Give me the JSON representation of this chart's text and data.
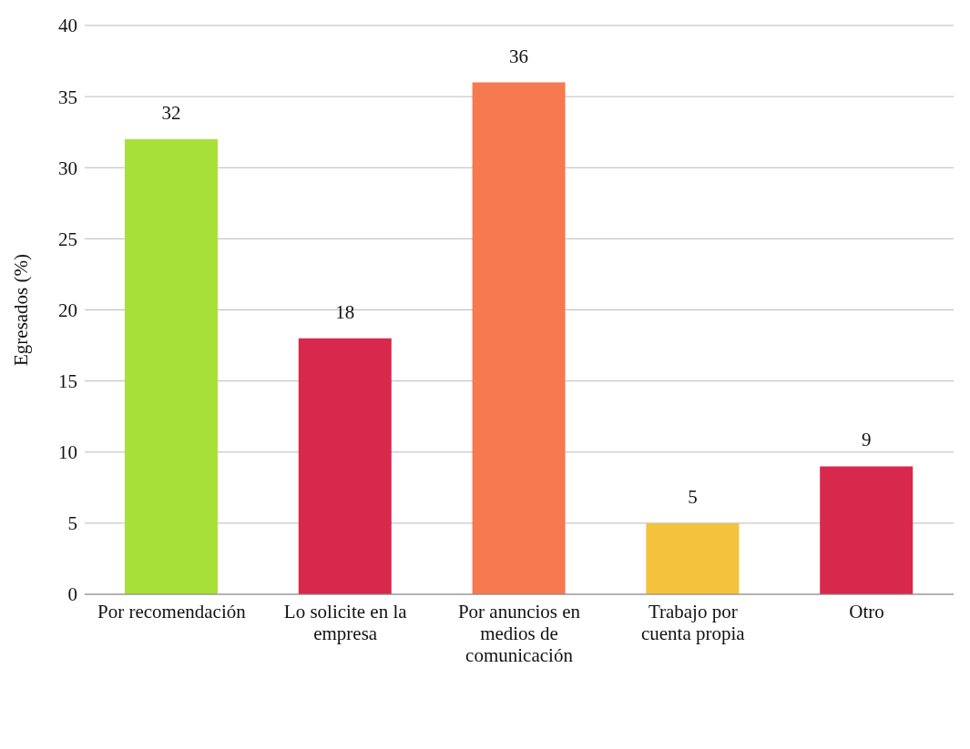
{
  "chart_data": {
    "type": "bar",
    "ylabel": "Egresados (%)",
    "categories": [
      "Por recomendación",
      "Lo solicite en la empresa",
      "Por anuncios en medios de comunicación",
      "Trabajo por cuenta propia",
      "Otro"
    ],
    "values": [
      32,
      18,
      36,
      5,
      9
    ],
    "colors": [
      "#a8e03a",
      "#d8284c",
      "#f7794f",
      "#f5c23e",
      "#d8284c"
    ],
    "ylim": [
      0,
      40
    ],
    "yticks": [
      0,
      5,
      10,
      15,
      20,
      25,
      30,
      35,
      40
    ],
    "grid": "y",
    "data_labels": true
  }
}
